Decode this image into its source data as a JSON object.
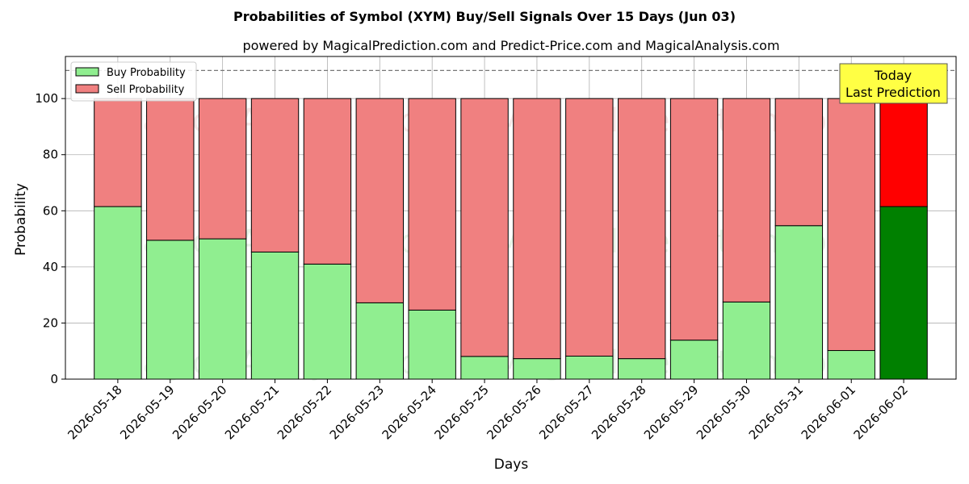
{
  "chart_data": {
    "type": "bar",
    "stacked": true,
    "title": "Probabilities of Symbol (XYM) Buy/Sell Signals Over 15 Days (Jun 03)",
    "subtitle": "powered by MagicalPrediction.com and Predict-Price.com and MagicalAnalysis.com",
    "xlabel": "Days",
    "ylabel": "Probability",
    "ylim": [
      0,
      115
    ],
    "yticks": [
      0,
      20,
      40,
      60,
      80,
      100
    ],
    "grid": true,
    "legend_position": "top-left",
    "reference_line": 110,
    "categories": [
      "2026-05-18",
      "2026-05-19",
      "2026-05-20",
      "2026-05-21",
      "2026-05-22",
      "2026-05-23",
      "2026-05-24",
      "2026-05-25",
      "2026-05-26",
      "2026-05-27",
      "2026-05-28",
      "2026-05-29",
      "2026-05-30",
      "2026-05-31",
      "2026-06-01",
      "2026-06-02"
    ],
    "series": [
      {
        "name": "Buy Probability",
        "color": "#90EE90",
        "values": [
          61.5,
          49.5,
          50,
          45.3,
          41,
          27.2,
          24.6,
          8.1,
          7.3,
          8.2,
          7.3,
          13.9,
          27.5,
          54.7,
          10.2,
          61.5
        ]
      },
      {
        "name": "Sell Probability",
        "color": "#F08080",
        "values": [
          38.5,
          50.5,
          50,
          54.7,
          59,
          72.8,
          75.4,
          91.9,
          92.7,
          91.8,
          92.7,
          86.1,
          72.5,
          45.3,
          89.8,
          38.5
        ]
      }
    ],
    "highlight": {
      "index": 15,
      "buy_color": "#008000",
      "sell_color": "#FF0000"
    },
    "annotation": {
      "line1": "Today",
      "line2": "Last Prediction",
      "background": "#FFFF44"
    },
    "watermarks": [
      "MagicalAnalysis.com",
      "MagicalPrediction.com"
    ]
  }
}
